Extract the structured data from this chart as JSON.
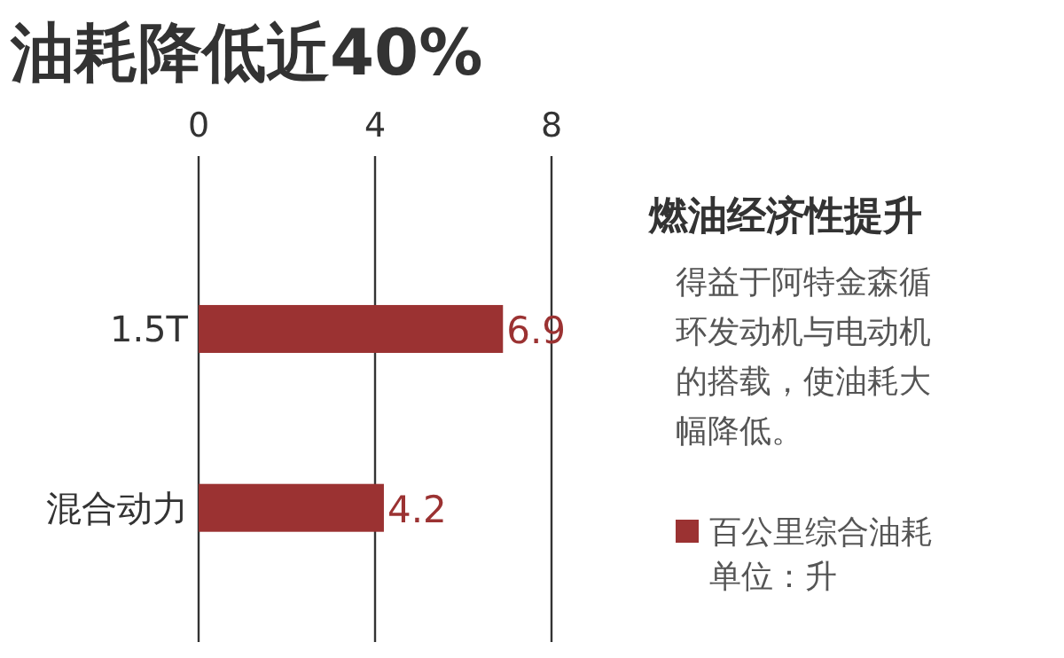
{
  "chart_data": {
    "type": "bar",
    "orientation": "horizontal",
    "title": "油耗降低近40%",
    "subtitle": "燃油经济性提升",
    "categories": [
      "1.5T",
      "混合动力"
    ],
    "series": [
      {
        "name": "百公里综合油耗",
        "color": "#9b3232",
        "values": [
          6.9,
          4.2
        ]
      }
    ],
    "xlim": [
      0,
      8
    ],
    "xticks": [
      0,
      4,
      8
    ],
    "grid": "x",
    "data_labels": true,
    "legend": "right",
    "annotations": [
      "得益于阿特金森循环发动机与电动机的搭载，使油耗大幅降低。",
      "单位：升"
    ]
  }
}
